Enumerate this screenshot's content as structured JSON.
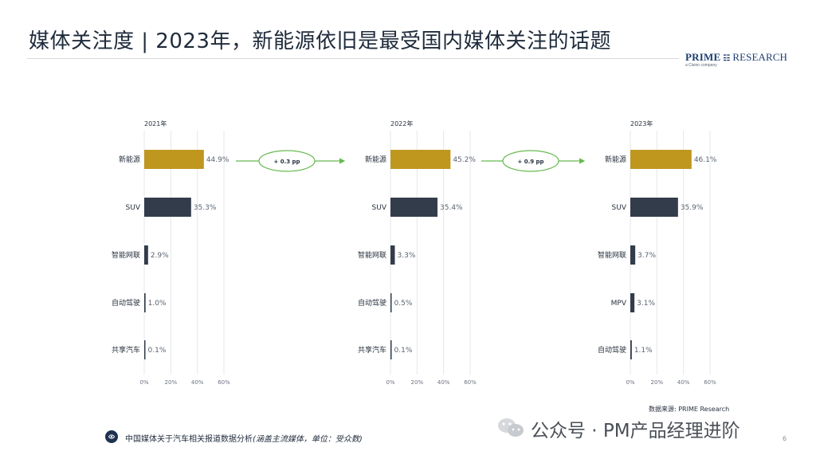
{
  "title": "媒体关注度 | 2023年，新能源依旧是最受国内媒体关注的话题",
  "brand": {
    "prime": "PRIME",
    "mark": "☷",
    "research": "RESEARCH",
    "subline": "a Cision company"
  },
  "colors": {
    "gold": "#bf971e",
    "navy": "#333c4b",
    "arrow": "#68b950",
    "axis": "#e5e7ea",
    "text": "#27313e"
  },
  "chart_data": [
    {
      "type": "bar",
      "title": "2021年",
      "categories": [
        "新能源",
        "SUV",
        "智能网联",
        "自动驾驶",
        "共享汽车"
      ],
      "values": [
        44.9,
        35.3,
        2.9,
        1.0,
        0.1
      ],
      "value_labels": [
        "44.9%",
        "35.3%",
        "2.9%",
        "1.0%",
        "0.1%"
      ],
      "bar_colors": [
        "#bf971e",
        "#333c4b",
        "#333c4b",
        "#333c4b",
        "#333c4b"
      ],
      "xlim": [
        0,
        60
      ],
      "x_ticks": [
        "0%",
        "20%",
        "40%",
        "60%"
      ],
      "orientation": "horizontal",
      "grid": true
    },
    {
      "type": "bar",
      "title": "2022年",
      "categories": [
        "新能源",
        "SUV",
        "智能网联",
        "自动驾驶",
        "共享汽车"
      ],
      "values": [
        45.2,
        35.4,
        3.3,
        0.5,
        0.1
      ],
      "value_labels": [
        "45.2%",
        "35.4%",
        "3.3%",
        "0.5%",
        "0.1%"
      ],
      "bar_colors": [
        "#bf971e",
        "#333c4b",
        "#333c4b",
        "#333c4b",
        "#333c4b"
      ],
      "xlim": [
        0,
        60
      ],
      "x_ticks": [
        "0%",
        "20%",
        "40%",
        "60%"
      ],
      "orientation": "horizontal",
      "grid": true
    },
    {
      "type": "bar",
      "title": "2023年",
      "categories": [
        "新能源",
        "SUV",
        "智能网联",
        "MPV",
        "自动驾驶"
      ],
      "values": [
        46.1,
        35.9,
        3.7,
        3.1,
        1.1
      ],
      "value_labels": [
        "46.1%",
        "35.9%",
        "3.7%",
        "3.1%",
        "1.1%"
      ],
      "bar_colors": [
        "#bf971e",
        "#333c4b",
        "#333c4b",
        "#333c4b",
        "#333c4b"
      ],
      "xlim": [
        0,
        60
      ],
      "x_ticks": [
        "0%",
        "20%",
        "40%",
        "60%"
      ],
      "orientation": "horizontal",
      "grid": true
    }
  ],
  "changes": [
    {
      "label": "+ 0.3 pp"
    },
    {
      "label": "+ 0.9 pp"
    }
  ],
  "source": "数据来源: PRIME Research",
  "footer": {
    "text": "中国媒体关于汽车相关报道数据分析",
    "note": "(涵盖主流媒体，单位：受众数)"
  },
  "watermark": "公众号 · PM产品经理进阶",
  "page_number": "6"
}
